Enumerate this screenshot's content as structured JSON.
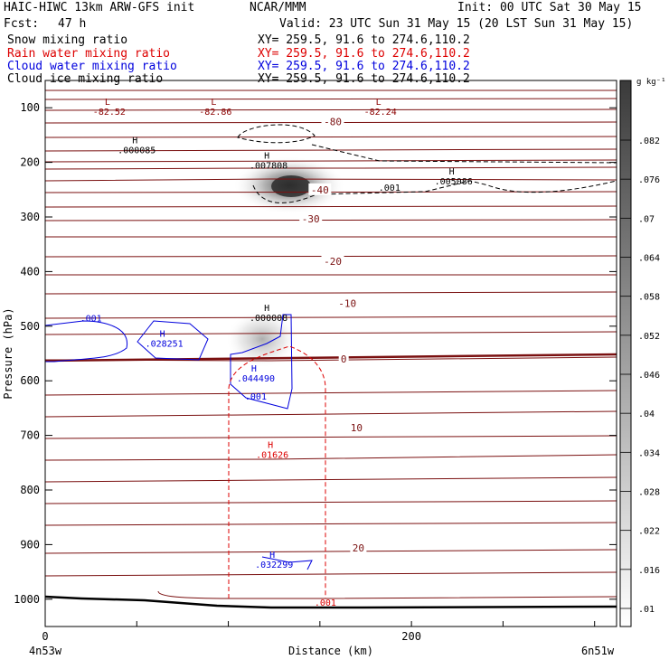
{
  "header": {
    "title": "HAIC-HIWC 13km ARW-GFS init",
    "center": "NCAR/MMM",
    "init": "Init: 00 UTC Sat 30 May 15",
    "fcst_label": "Fcst:",
    "fcst_value": "47 h",
    "valid": "Valid: 23 UTC Sun 31 May 15 (20 LST Sun 31 May 15)"
  },
  "fields": [
    {
      "name": "Snow mixing ratio",
      "xy": "XY= 259.5, 91.6 to 274.6,110.2",
      "color": "#000000"
    },
    {
      "name": "Rain water mixing ratio",
      "xy": "XY= 259.5, 91.6 to 274.6,110.2",
      "color": "#dd0000"
    },
    {
      "name": "Cloud water mixing ratio",
      "xy": "XY= 259.5, 91.6 to 274.6,110.2",
      "color": "#0000dd"
    },
    {
      "name": "Cloud ice mixing ratio",
      "xy": "XY= 259.5, 91.6 to 274.6,110.2",
      "color": "#000000"
    }
  ],
  "chart_data": {
    "type": "heatmap",
    "title": "",
    "xlabel": "Distance (km)",
    "ylabel": "Pressure (hPa)",
    "x_range": [
      0,
      312
    ],
    "x_ticks": [
      0,
      200
    ],
    "x_end_labels": {
      "left": "4n53w",
      "right": "6n51w"
    },
    "y_range": [
      1050,
      50
    ],
    "y_ticks": [
      100,
      200,
      300,
      400,
      500,
      600,
      700,
      800,
      900,
      1000
    ],
    "colorbar": {
      "units": "g kg⁻¹",
      "ticks": [
        ".01",
        ".016",
        ".022",
        ".028",
        ".034",
        ".04",
        ".046",
        ".052",
        ".058",
        ".064",
        ".07",
        ".076",
        ".082"
      ]
    },
    "temperature_contour_labels": [
      {
        "text": "-80",
        "x": 157,
        "p": 125
      },
      {
        "text": "-40",
        "x": 150,
        "p": 250
      },
      {
        "text": "-30",
        "x": 145,
        "p": 303
      },
      {
        "text": "-20",
        "x": 157,
        "p": 381
      },
      {
        "text": "-10",
        "x": 165,
        "p": 458
      },
      {
        "text": "0",
        "x": 163,
        "p": 560
      },
      {
        "text": "10",
        "x": 170,
        "p": 686
      },
      {
        "text": "20",
        "x": 171,
        "p": 906
      }
    ],
    "extrema": [
      {
        "mark": "L",
        "value": "-82.52",
        "x": 34,
        "p": 95,
        "color": "#8b0000"
      },
      {
        "mark": "L",
        "value": "-82.86",
        "x": 92,
        "p": 95,
        "color": "#8b0000"
      },
      {
        "mark": "L",
        "value": "-82.24",
        "x": 182,
        "p": 95,
        "color": "#8b0000"
      },
      {
        "mark": "H",
        "value": ".000085",
        "x": 49,
        "p": 165,
        "color": "#000000"
      },
      {
        "mark": "H",
        "value": ".007808",
        "x": 121,
        "p": 193,
        "color": "#000000"
      },
      {
        "mark": "H",
        "value": ".005086",
        "x": 222,
        "p": 222,
        "color": "#000000"
      },
      {
        "mark": "H",
        "value": ".000008",
        "x": 121,
        "p": 472,
        "color": "#000000"
      },
      {
        "mark": "H",
        "value": ".028251",
        "x": 64,
        "p": 519,
        "color": "#0000dd"
      },
      {
        "mark": "H",
        "value": ".044490",
        "x": 114,
        "p": 583,
        "color": "#0000dd"
      },
      {
        "mark": "H",
        "value": ".01626",
        "x": 123,
        "p": 723,
        "color": "#dd0000"
      },
      {
        "mark": "H",
        "value": ".032299",
        "x": 124,
        "p": 924,
        "color": "#0000dd"
      }
    ],
    "contour_labels": [
      {
        "text": ".001",
        "x": 188,
        "p": 245,
        "color": "#000000"
      },
      {
        "text": ".001",
        "x": 25,
        "p": 485,
        "color": "#0000dd"
      },
      {
        "text": ".001",
        "x": 115,
        "p": 628,
        "color": "#0000dd"
      },
      {
        "text": ".001",
        "x": 153,
        "p": 1005,
        "color": "#dd0000"
      }
    ]
  }
}
